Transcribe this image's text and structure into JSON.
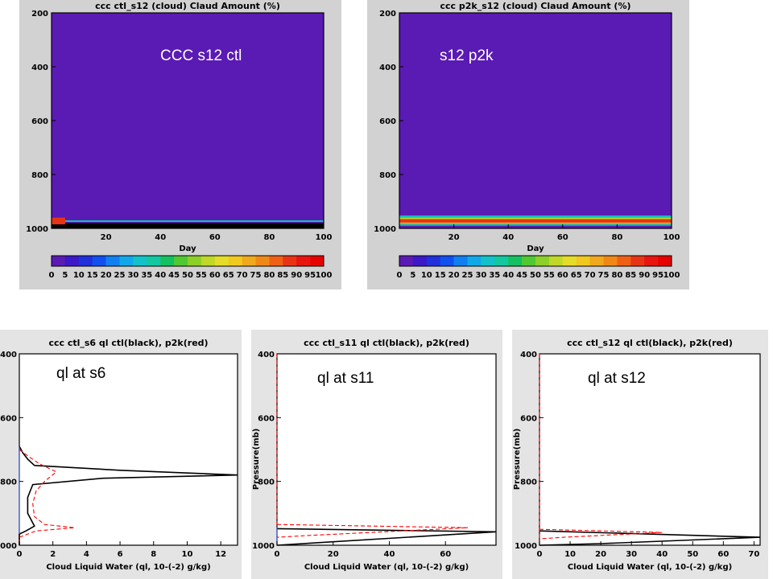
{
  "chart_data": [
    {
      "type": "heatmap",
      "title": "ccc ctl_s12   (cloud)   Claud Amount (%)",
      "annotation": "CCC s12 ctl",
      "xlabel": "Day",
      "ylabel": "",
      "xlim": [
        0,
        100
      ],
      "ylim": [
        1000,
        200
      ],
      "xticks": [
        "20",
        "40",
        "60",
        "80",
        "100"
      ],
      "yticks": [
        "200",
        "400",
        "600",
        "800",
        "1000"
      ],
      "background_color": "#5a1ab4",
      "cloud_layers": [
        {
          "x": [
            0,
            100
          ],
          "p": [
            980,
            1000
          ],
          "color": "#000000"
        },
        {
          "x": [
            0,
            100
          ],
          "p": [
            970,
            976
          ],
          "color": "#12c2b4"
        },
        {
          "x": [
            0,
            5
          ],
          "p": [
            960,
            985
          ],
          "color": "#e83414"
        }
      ],
      "colorbar": {
        "labels": [
          "0",
          "5",
          "10",
          "15",
          "20",
          "25",
          "30",
          "35",
          "40",
          "45",
          "50",
          "55",
          "60",
          "65",
          "70",
          "75",
          "80",
          "85",
          "90",
          "95",
          "100"
        ],
        "colors": [
          "#5a1ab4",
          "#3c18c8",
          "#2030dc",
          "#1050f0",
          "#1080f0",
          "#10a8e8",
          "#12c2c8",
          "#12c8a0",
          "#14c060",
          "#50c832",
          "#8cd028",
          "#c0d828",
          "#e4dc28",
          "#f0c820",
          "#f0a81c",
          "#f08818",
          "#f06014",
          "#e83414",
          "#e81410",
          "#e80000"
        ]
      }
    },
    {
      "type": "heatmap",
      "title": "ccc p2k_s12   (cloud)   Claud Amount (%)",
      "annotation": "s12 p2k",
      "xlabel": "Day",
      "ylabel": "",
      "xlim": [
        0,
        100
      ],
      "ylim": [
        1000,
        200
      ],
      "xticks": [
        "20",
        "40",
        "60",
        "80",
        "100"
      ],
      "yticks": [
        "200",
        "400",
        "600",
        "800",
        "1000"
      ],
      "background_color": "#5a1ab4",
      "cloud_layers": [
        {
          "x": [
            0,
            100
          ],
          "p": [
            952,
            960
          ],
          "color": "#12c2b4"
        },
        {
          "x": [
            0,
            100
          ],
          "p": [
            960,
            966
          ],
          "color": "#c0d828"
        },
        {
          "x": [
            0,
            100
          ],
          "p": [
            966,
            978
          ],
          "color": "#e83414"
        },
        {
          "x": [
            0,
            100
          ],
          "p": [
            978,
            984
          ],
          "color": "#f0a81c"
        },
        {
          "x": [
            0,
            100
          ],
          "p": [
            984,
            990
          ],
          "color": "#12c2b4"
        }
      ],
      "colorbar": {
        "labels": [
          "0",
          "5",
          "10",
          "15",
          "20",
          "25",
          "30",
          "35",
          "40",
          "45",
          "50",
          "55",
          "60",
          "65",
          "70",
          "75",
          "80",
          "85",
          "90",
          "95",
          "100"
        ],
        "colors": [
          "#5a1ab4",
          "#3c18c8",
          "#2030dc",
          "#1050f0",
          "#1080f0",
          "#10a8e8",
          "#12c2c8",
          "#12c8a0",
          "#14c060",
          "#50c832",
          "#8cd028",
          "#c0d828",
          "#e4dc28",
          "#f0c820",
          "#f0a81c",
          "#f08818",
          "#f06014",
          "#e83414",
          "#e81410",
          "#e80000"
        ]
      }
    },
    {
      "type": "line",
      "title": "ccc ctl_s6 ql ctl(black), p2k(red)",
      "annotation": "ql at s6",
      "xlabel": "Cloud Liquid Water (ql, 10-(-2) g/kg)",
      "ylabel": "",
      "xlim": [
        0,
        13
      ],
      "ylim": [
        1000,
        400
      ],
      "xticks": [
        "0",
        "2",
        "4",
        "6",
        "8",
        "10",
        "12"
      ],
      "yticks": [
        "400",
        "600",
        "800",
        "1000"
      ],
      "series": [
        {
          "color": "#000000",
          "dash": false,
          "points": [
            [
              0,
              690
            ],
            [
              0.2,
              710
            ],
            [
              0.5,
              730
            ],
            [
              0.9,
              750
            ],
            [
              6,
              765
            ],
            [
              13,
              780
            ],
            [
              5,
              790
            ],
            [
              0.8,
              810
            ],
            [
              0.5,
              850
            ],
            [
              0.5,
              900
            ],
            [
              0.9,
              940
            ],
            [
              0.4,
              955
            ],
            [
              0,
              965
            ],
            [
              0,
              1000
            ]
          ]
        },
        {
          "color": "#ff0000",
          "dash": true,
          "points": [
            [
              0,
              700
            ],
            [
              0.5,
              720
            ],
            [
              1.2,
              745
            ],
            [
              2.2,
              770
            ],
            [
              1.5,
              800
            ],
            [
              1.0,
              830
            ],
            [
              0.8,
              870
            ],
            [
              0.9,
              910
            ],
            [
              1.5,
              935
            ],
            [
              3.3,
              945
            ],
            [
              1.0,
              955
            ],
            [
              0,
              975
            ],
            [
              0,
              1000
            ]
          ]
        },
        {
          "color": "#3050e0",
          "dash": false,
          "points": [
            [
              0,
              690
            ],
            [
              0,
              965
            ]
          ]
        }
      ]
    },
    {
      "type": "line",
      "title": "ccc ctl_s11 ql ctl(black), p2k(red)",
      "annotation": "ql at s11",
      "xlabel": "Cloud Liquid Water (ql, 10-(-2) g/kg)",
      "ylabel": "Pressure(mb)",
      "xlim": [
        0,
        78
      ],
      "ylim": [
        1000,
        400
      ],
      "xticks": [
        "0",
        "20",
        "40",
        "60"
      ],
      "yticks": [
        "400",
        "600",
        "800",
        "1000"
      ],
      "series": [
        {
          "color": "#000000",
          "dash": false,
          "points": [
            [
              0,
              948
            ],
            [
              78,
              958
            ],
            [
              0,
              1000
            ]
          ]
        },
        {
          "color": "#ff0000",
          "dash": true,
          "points": [
            [
              0,
              935
            ],
            [
              68,
              945
            ],
            [
              10,
              970
            ],
            [
              0,
              975
            ]
          ]
        },
        {
          "color": "#ff0000",
          "dash": true,
          "points": [
            [
              0,
              400
            ],
            [
              0,
              1000
            ]
          ]
        },
        {
          "color": "#3050e0",
          "dash": false,
          "points": [
            [
              0,
              944
            ],
            [
              0,
              1000
            ]
          ]
        }
      ]
    },
    {
      "type": "line",
      "title": "ccc ctl_s12 ql ctl(black), p2k(red)",
      "annotation": "ql at s12",
      "xlabel": "Cloud Liquid Water (ql, 10-(-2) g/kg)",
      "ylabel": "Pressure(mb)",
      "xlim": [
        0,
        72
      ],
      "ylim": [
        1000,
        400
      ],
      "xticks": [
        "0",
        "10",
        "20",
        "30",
        "40",
        "50",
        "60",
        "70"
      ],
      "yticks": [
        "400",
        "600",
        "800",
        "1000"
      ],
      "series": [
        {
          "color": "#000000",
          "dash": false,
          "points": [
            [
              0,
              955
            ],
            [
              72,
              975
            ],
            [
              20,
              995
            ],
            [
              0,
              1000
            ]
          ]
        },
        {
          "color": "#ff0000",
          "dash": true,
          "points": [
            [
              0,
              950
            ],
            [
              40,
              960
            ],
            [
              8,
              975
            ],
            [
              0,
              980
            ]
          ]
        },
        {
          "color": "#ff0000",
          "dash": true,
          "points": [
            [
              0,
              400
            ],
            [
              0,
              1000
            ]
          ]
        }
      ]
    }
  ]
}
